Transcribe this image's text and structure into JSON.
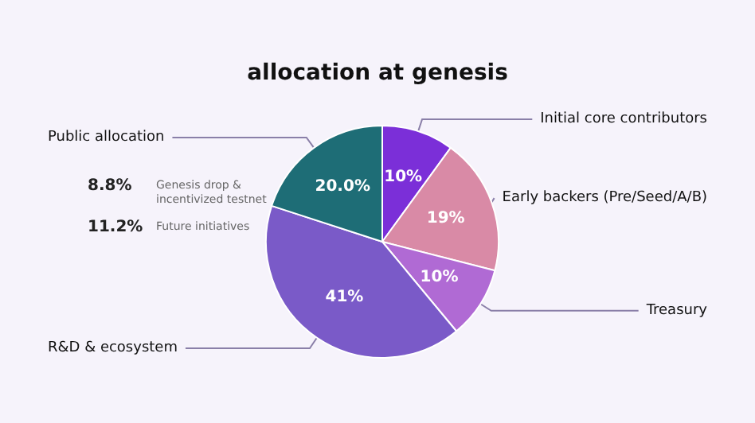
{
  "chart_data": {
    "type": "pie",
    "title": "allocation at genesis",
    "categories": [
      "Initial core contributors",
      "Early backers (Pre/Seed/A/B)",
      "Treasury",
      "R&D & ecosystem",
      "Public allocation"
    ],
    "values": [
      10,
      19,
      10,
      41,
      20
    ],
    "value_labels": [
      "10%",
      "19%",
      "10%",
      "41%",
      "20.0%"
    ],
    "colors": [
      "#7b2fd8",
      "#d98aa6",
      "#b06ad4",
      "#7a5ac8",
      "#1e6d76"
    ],
    "annotations": [
      "8.8%",
      "Genesis drop & incentivized testnet",
      "11.2%",
      "Future initiatives"
    ]
  }
}
